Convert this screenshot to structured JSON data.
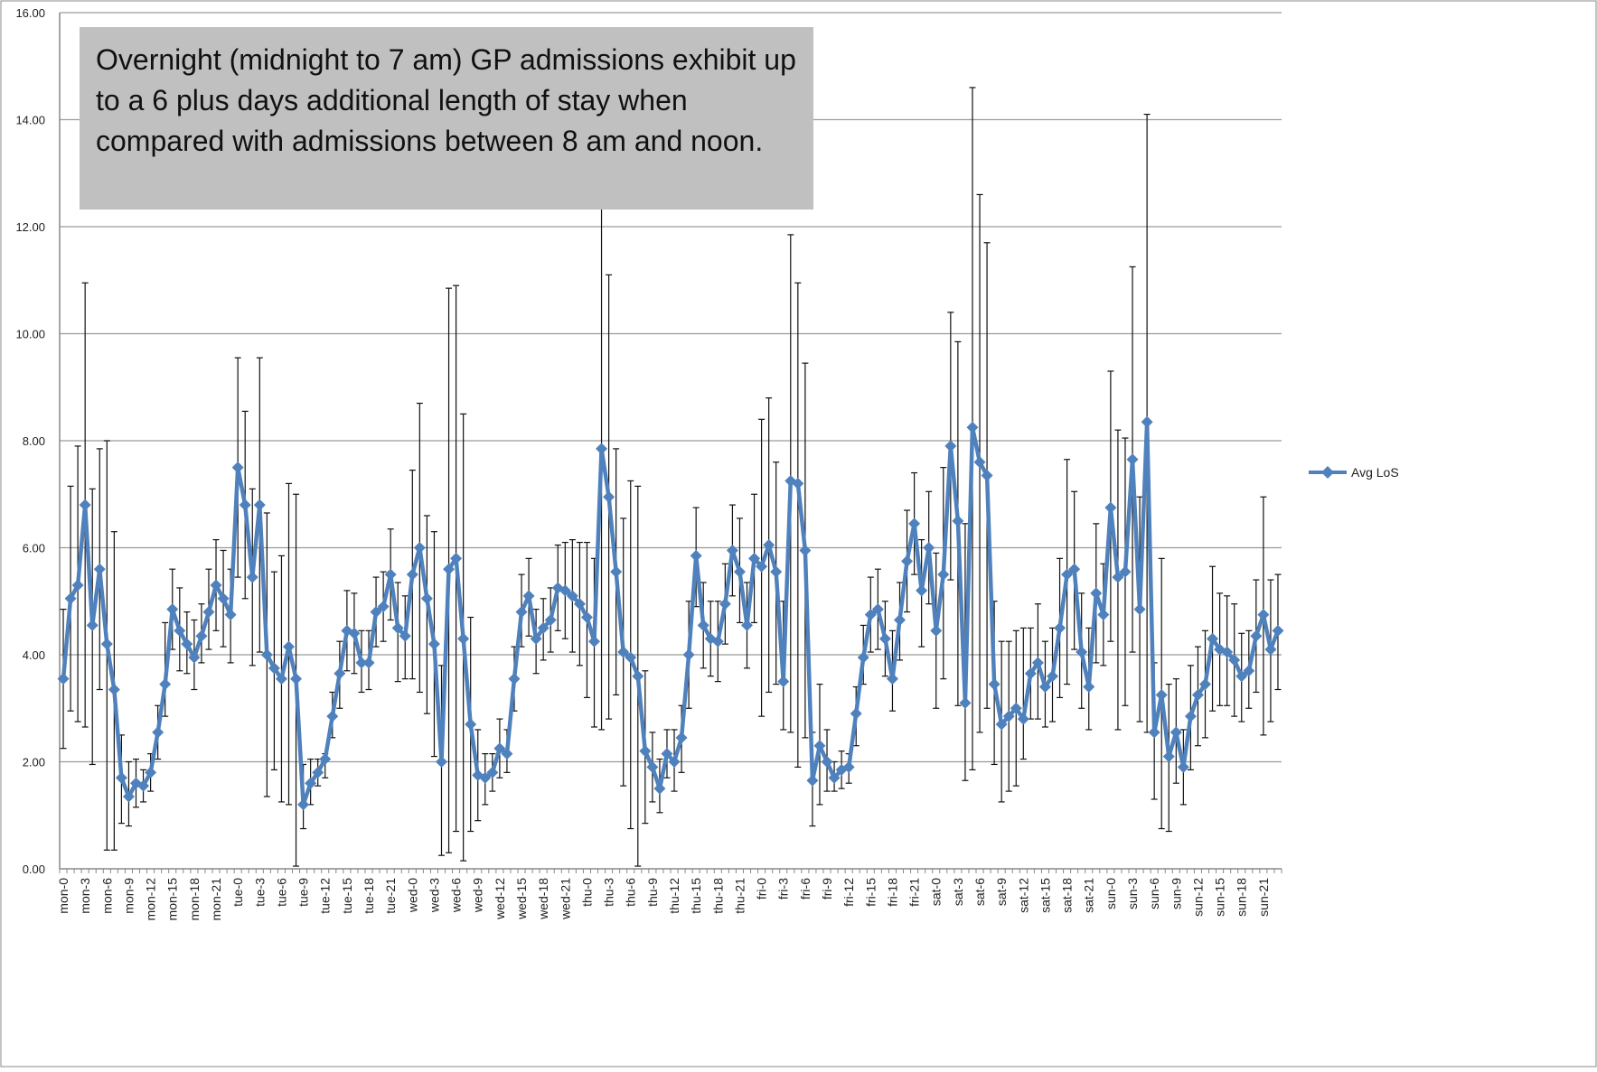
{
  "chart_data": {
    "type": "line",
    "annotation": "Overnight (midnight to 7 am) GP admissions exhibit up to a 6 plus days additional length of stay when compared with admissions between 8 am and noon.",
    "xlabel": "",
    "ylabel": "",
    "ylim": [
      0,
      16
    ],
    "y_ticks": [
      "0.00",
      "2.00",
      "4.00",
      "6.00",
      "8.00",
      "10.00",
      "12.00",
      "14.00",
      "16.00"
    ],
    "grid": "horizontal",
    "legend": "right",
    "x_tick_labels": [
      "mon-0",
      "mon-3",
      "mon-6",
      "mon-9",
      "mon-12",
      "mon-15",
      "mon-18",
      "mon-21",
      "tue-0",
      "tue-3",
      "tue-6",
      "tue-9",
      "tue-12",
      "tue-15",
      "tue-18",
      "tue-21",
      "wed-0",
      "wed-3",
      "wed-6",
      "wed-9",
      "wed-12",
      "wed-15",
      "wed-18",
      "wed-21",
      "thu-0",
      "thu-3",
      "thu-6",
      "thu-9",
      "thu-12",
      "thu-15",
      "thu-18",
      "thu-21",
      "fri-0",
      "fri-3",
      "fri-6",
      "fri-9",
      "fri-12",
      "fri-15",
      "fri-18",
      "fri-21",
      "sat-0",
      "sat-3",
      "sat-6",
      "sat-9",
      "sat-12",
      "sat-15",
      "sat-18",
      "sat-21",
      "sun-0",
      "sun-3",
      "sun-6",
      "sun-9",
      "sun-12",
      "sun-15",
      "sun-18",
      "sun-21"
    ],
    "series": [
      {
        "name": "Avg LoS",
        "color": "#4f81bd",
        "values": [
          3.55,
          5.05,
          5.3,
          6.8,
          4.55,
          5.6,
          4.2,
          3.35,
          1.7,
          1.35,
          1.6,
          1.55,
          1.8,
          2.55,
          3.45,
          4.85,
          4.45,
          4.2,
          3.95,
          4.35,
          4.8,
          5.3,
          5.05,
          4.75,
          7.5,
          6.8,
          5.45,
          6.8,
          4.0,
          3.75,
          3.55,
          4.15,
          3.55,
          1.2,
          1.6,
          1.8,
          2.05,
          2.85,
          3.65,
          4.45,
          4.4,
          3.85,
          3.85,
          4.8,
          4.9,
          5.5,
          4.5,
          4.35,
          5.5,
          6.0,
          5.05,
          4.2,
          2.0,
          5.6,
          5.8,
          4.3,
          2.7,
          1.75,
          1.7,
          1.8,
          2.25,
          2.15,
          3.55,
          4.8,
          5.1,
          4.3,
          4.5,
          4.65,
          5.25,
          5.2,
          5.1,
          4.95,
          4.7,
          4.25,
          7.85,
          6.95,
          5.55,
          4.05,
          3.95,
          3.6,
          2.2,
          1.9,
          1.5,
          2.15,
          2.0,
          2.45,
          4.0,
          5.85,
          4.55,
          4.3,
          4.25,
          4.95,
          5.95,
          5.55,
          4.55,
          5.8,
          5.65,
          6.05,
          5.55,
          3.5,
          7.25,
          7.2,
          5.95,
          1.65,
          2.3,
          2.0,
          1.7,
          1.85,
          1.9,
          2.9,
          3.95,
          4.75,
          4.85,
          4.3,
          3.55,
          4.65,
          5.75,
          6.45,
          5.2,
          6.0,
          4.45,
          5.5,
          7.9,
          6.5,
          3.1,
          8.25,
          7.6,
          7.35,
          3.45,
          2.7,
          2.85,
          3.0,
          2.8,
          3.65,
          3.85,
          3.4,
          3.6,
          4.5,
          5.5,
          5.6,
          4.05,
          3.4,
          5.15,
          4.75,
          6.75,
          5.45,
          5.55,
          7.65,
          4.85,
          8.35,
          2.55,
          3.25,
          2.1,
          2.55,
          1.9,
          2.85,
          3.25,
          3.45,
          4.3,
          4.1,
          4.05,
          3.9,
          3.6,
          3.7,
          4.35,
          4.75,
          4.1,
          4.45
        ],
        "error_high": [
          4.85,
          7.15,
          7.9,
          10.95,
          7.1,
          7.85,
          8.0,
          6.3,
          2.5,
          2.0,
          2.05,
          1.85,
          2.15,
          3.05,
          4.6,
          5.6,
          5.25,
          4.8,
          4.65,
          4.95,
          5.6,
          6.15,
          5.95,
          5.6,
          9.55,
          8.55,
          7.1,
          9.55,
          6.65,
          5.55,
          5.85,
          7.2,
          7.0,
          1.95,
          2.05,
          2.05,
          2.15,
          3.3,
          4.25,
          5.2,
          5.15,
          4.45,
          4.45,
          5.45,
          5.55,
          6.35,
          5.35,
          5.1,
          7.45,
          8.7,
          6.6,
          6.3,
          3.8,
          10.85,
          10.9,
          8.5,
          4.7,
          2.6,
          2.15,
          2.15,
          2.8,
          2.6,
          4.15,
          5.5,
          5.8,
          4.85,
          5.05,
          5.25,
          6.05,
          6.1,
          6.15,
          6.1,
          6.1,
          5.8,
          12.65,
          11.1,
          7.85,
          6.55,
          7.25,
          7.15,
          3.7,
          2.55,
          2.05,
          2.6,
          2.6,
          3.05,
          5.0,
          6.75,
          5.35,
          5.0,
          5.0,
          5.7,
          6.8,
          6.55,
          5.35,
          7.0,
          8.4,
          8.8,
          7.6,
          5.0,
          11.85,
          10.95,
          9.45,
          2.55,
          3.45,
          2.6,
          2.0,
          2.2,
          2.15,
          3.4,
          4.55,
          5.45,
          5.6,
          5.0,
          4.45,
          5.35,
          6.7,
          7.4,
          6.15,
          7.05,
          5.9,
          7.5,
          10.4,
          9.85,
          6.45,
          14.6,
          12.6,
          11.7,
          5.0,
          4.25,
          4.25,
          4.45,
          4.5,
          4.5,
          4.95,
          4.25,
          4.5,
          5.8,
          7.65,
          7.05,
          5.15,
          4.5,
          6.45,
          5.7,
          9.3,
          8.2,
          8.05,
          11.25,
          6.95,
          14.1,
          3.85,
          5.8,
          3.45,
          3.55,
          2.6,
          3.8,
          4.15,
          4.45,
          5.65,
          5.15,
          5.1,
          4.95,
          4.4,
          4.45,
          5.4,
          6.95,
          5.4,
          5.5
        ],
        "error_low": [
          2.25,
          2.95,
          2.75,
          2.65,
          1.95,
          3.35,
          0.35,
          0.35,
          0.85,
          0.8,
          1.15,
          1.25,
          1.45,
          2.05,
          2.85,
          4.1,
          3.7,
          3.65,
          3.35,
          3.85,
          4.1,
          4.45,
          4.15,
          3.85,
          5.45,
          5.05,
          3.8,
          4.05,
          1.35,
          1.85,
          1.25,
          1.2,
          0.05,
          0.75,
          1.2,
          1.55,
          1.7,
          2.45,
          3.0,
          3.7,
          3.65,
          3.3,
          3.35,
          4.15,
          4.25,
          4.65,
          3.5,
          3.55,
          3.55,
          3.3,
          2.9,
          2.1,
          0.25,
          0.3,
          0.7,
          0.15,
          0.7,
          0.9,
          1.2,
          1.45,
          1.7,
          1.8,
          2.95,
          4.15,
          4.35,
          3.65,
          3.9,
          4.05,
          4.45,
          4.3,
          4.05,
          3.8,
          3.2,
          2.65,
          2.6,
          2.8,
          3.25,
          1.55,
          0.75,
          0.05,
          0.85,
          1.25,
          1.05,
          1.7,
          1.45,
          1.8,
          3.0,
          4.9,
          3.75,
          3.6,
          3.5,
          4.2,
          5.1,
          4.6,
          3.75,
          4.6,
          2.85,
          3.3,
          3.45,
          2.6,
          2.55,
          1.9,
          2.45,
          0.8,
          1.2,
          1.45,
          1.45,
          1.5,
          1.6,
          2.3,
          3.45,
          4.05,
          4.1,
          3.6,
          2.95,
          3.9,
          4.8,
          5.5,
          4.15,
          4.95,
          3.0,
          3.55,
          5.4,
          3.05,
          1.65,
          1.85,
          2.55,
          3.0,
          1.95,
          1.25,
          1.45,
          1.55,
          2.05,
          2.8,
          2.8,
          2.65,
          2.75,
          3.2,
          3.45,
          4.1,
          3.0,
          2.6,
          3.85,
          3.8,
          4.25,
          2.6,
          3.05,
          4.05,
          2.75,
          2.55,
          1.3,
          0.75,
          0.7,
          1.6,
          1.2,
          1.85,
          2.3,
          2.45,
          2.95,
          3.05,
          3.05,
          2.85,
          2.75,
          3.0,
          3.3,
          2.5,
          2.75,
          3.35
        ]
      }
    ]
  }
}
